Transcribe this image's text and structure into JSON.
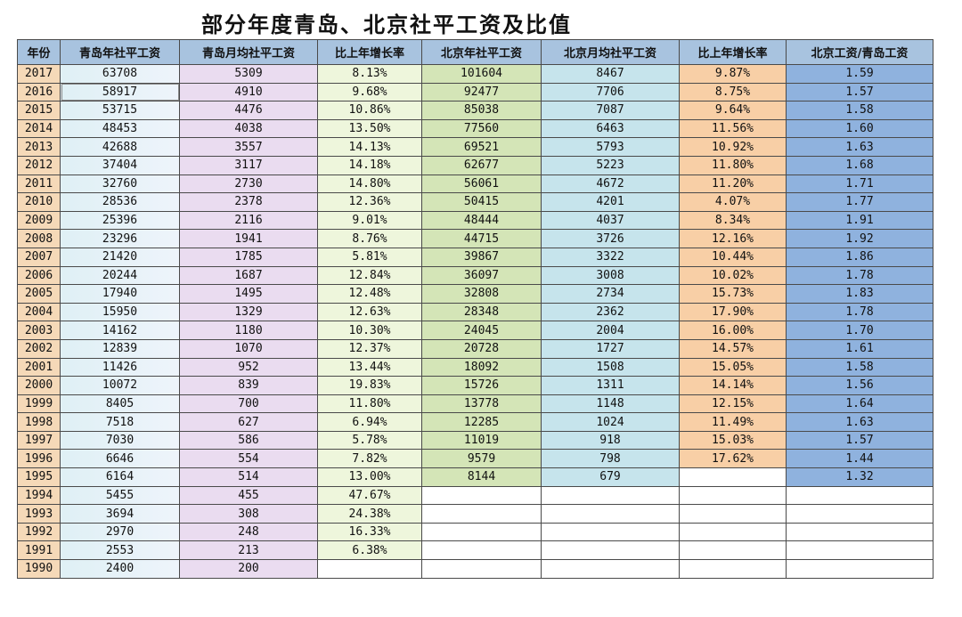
{
  "title": "部分年度青岛、北京社平工资及比值",
  "table": {
    "headers": [
      "年份",
      "青岛年社平工资",
      "青岛月均社平工资",
      "比上年增长率",
      "北京年社平工资",
      "北京月均社平工资",
      "比上年增长率",
      "北京工资/青岛工资"
    ],
    "rows": [
      [
        "2017",
        "63708",
        "5309",
        "8.13%",
        "101604",
        "8467",
        "9.87%",
        "1.59"
      ],
      [
        "2016",
        "58917",
        "4910",
        "9.68%",
        "92477",
        "7706",
        "8.75%",
        "1.57"
      ],
      [
        "2015",
        "53715",
        "4476",
        "10.86%",
        "85038",
        "7087",
        "9.64%",
        "1.58"
      ],
      [
        "2014",
        "48453",
        "4038",
        "13.50%",
        "77560",
        "6463",
        "11.56%",
        "1.60"
      ],
      [
        "2013",
        "42688",
        "3557",
        "14.13%",
        "69521",
        "5793",
        "10.92%",
        "1.63"
      ],
      [
        "2012",
        "37404",
        "3117",
        "14.18%",
        "62677",
        "5223",
        "11.80%",
        "1.68"
      ],
      [
        "2011",
        "32760",
        "2730",
        "14.80%",
        "56061",
        "4672",
        "11.20%",
        "1.71"
      ],
      [
        "2010",
        "28536",
        "2378",
        "12.36%",
        "50415",
        "4201",
        "4.07%",
        "1.77"
      ],
      [
        "2009",
        "25396",
        "2116",
        "9.01%",
        "48444",
        "4037",
        "8.34%",
        "1.91"
      ],
      [
        "2008",
        "23296",
        "1941",
        "8.76%",
        "44715",
        "3726",
        "12.16%",
        "1.92"
      ],
      [
        "2007",
        "21420",
        "1785",
        "5.81%",
        "39867",
        "3322",
        "10.44%",
        "1.86"
      ],
      [
        "2006",
        "20244",
        "1687",
        "12.84%",
        "36097",
        "3008",
        "10.02%",
        "1.78"
      ],
      [
        "2005",
        "17940",
        "1495",
        "12.48%",
        "32808",
        "2734",
        "15.73%",
        "1.83"
      ],
      [
        "2004",
        "15950",
        "1329",
        "12.63%",
        "28348",
        "2362",
        "17.90%",
        "1.78"
      ],
      [
        "2003",
        "14162",
        "1180",
        "10.30%",
        "24045",
        "2004",
        "16.00%",
        "1.70"
      ],
      [
        "2002",
        "12839",
        "1070",
        "12.37%",
        "20728",
        "1727",
        "14.57%",
        "1.61"
      ],
      [
        "2001",
        "11426",
        "952",
        "13.44%",
        "18092",
        "1508",
        "15.05%",
        "1.58"
      ],
      [
        "2000",
        "10072",
        "839",
        "19.83%",
        "15726",
        "1311",
        "14.14%",
        "1.56"
      ],
      [
        "1999",
        "8405",
        "700",
        "11.80%",
        "13778",
        "1148",
        "12.15%",
        "1.64"
      ],
      [
        "1998",
        "7518",
        "627",
        "6.94%",
        "12285",
        "1024",
        "11.49%",
        "1.63"
      ],
      [
        "1997",
        "7030",
        "586",
        "5.78%",
        "11019",
        "918",
        "15.03%",
        "1.57"
      ],
      [
        "1996",
        "6646",
        "554",
        "7.82%",
        "9579",
        "798",
        "17.62%",
        "1.44"
      ],
      [
        "1995",
        "6164",
        "514",
        "13.00%",
        "8144",
        "679",
        "",
        "1.32"
      ],
      [
        "1994",
        "5455",
        "455",
        "47.67%",
        "",
        "",
        "",
        ""
      ],
      [
        "1993",
        "3694",
        "308",
        "24.38%",
        "",
        "",
        "",
        ""
      ],
      [
        "1992",
        "2970",
        "248",
        "16.33%",
        "",
        "",
        "",
        ""
      ],
      [
        "1991",
        "2553",
        "213",
        "6.38%",
        "",
        "",
        "",
        ""
      ],
      [
        "1990",
        "2400",
        "200",
        "",
        "",
        "",
        "",
        ""
      ]
    ]
  }
}
